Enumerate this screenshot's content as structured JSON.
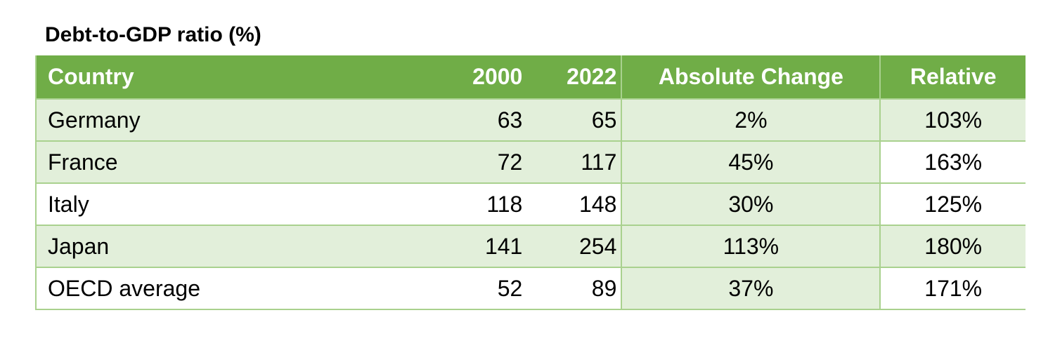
{
  "title": "Debt-to-GDP ratio (%)",
  "table": {
    "headers": {
      "country": "Country",
      "y2000": "2000",
      "y2022": "2022",
      "absolute_change": "Absolute Change",
      "relative": "Relative"
    },
    "rows": [
      {
        "country": "Germany",
        "y2000": "63",
        "y2022": "65",
        "absolute_change": "2%",
        "relative": "103%"
      },
      {
        "country": "France",
        "y2000": "72",
        "y2022": "117",
        "absolute_change": "45%",
        "relative": "163%"
      },
      {
        "country": "Italy",
        "y2000": "118",
        "y2022": "148",
        "absolute_change": "30%",
        "relative": "125%"
      },
      {
        "country": "Japan",
        "y2000": "141",
        "y2022": "254",
        "absolute_change": "113%",
        "relative": "180%"
      },
      {
        "country": "OECD average",
        "y2000": "52",
        "y2022": "89",
        "absolute_change": "37%",
        "relative": "171%"
      }
    ]
  },
  "colors": {
    "header_fill": "#70ad47",
    "band_fill": "#e2efda",
    "border": "#a9d18e"
  }
}
